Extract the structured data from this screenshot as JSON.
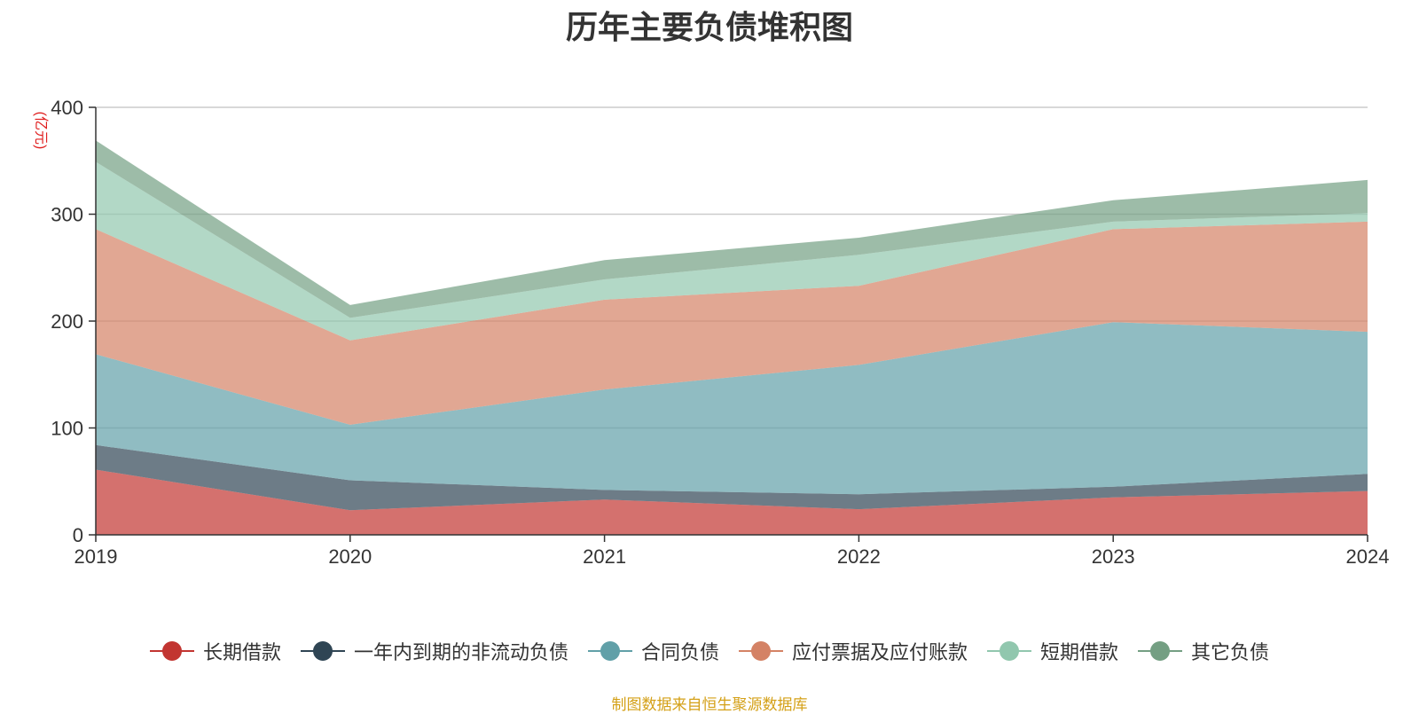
{
  "chart_data": {
    "type": "area",
    "stacked": true,
    "title": "历年主要负债堆积图",
    "unit_label": "(亿元)",
    "x": [
      "2019",
      "2020",
      "2021",
      "2022",
      "2023",
      "2024"
    ],
    "ylim": [
      0,
      400
    ],
    "yticks": [
      0,
      100,
      200,
      300,
      400
    ],
    "grid": true,
    "legend_position": "bottom",
    "series": [
      {
        "name": "长期借款",
        "color": "#c23531",
        "values": [
          61,
          23,
          33,
          24,
          35,
          41
        ]
      },
      {
        "name": "一年内到期的非流动负债",
        "color": "#2f4554",
        "values": [
          23,
          28,
          9,
          14,
          10,
          16
        ]
      },
      {
        "name": "合同负债",
        "color": "#61a0a8",
        "values": [
          85,
          52,
          94,
          121,
          154,
          133
        ]
      },
      {
        "name": "应付票据及应付账款",
        "color": "#d48265",
        "values": [
          117,
          79,
          84,
          74,
          87,
          103
        ]
      },
      {
        "name": "短期借款",
        "color": "#91c7ae",
        "values": [
          63,
          21,
          19,
          29,
          7,
          8
        ]
      },
      {
        "name": "其它负债",
        "color": "#749f83",
        "values": [
          20,
          12,
          18,
          16,
          20,
          31
        ]
      }
    ]
  },
  "source_note": "制图数据来自恒生聚源数据库"
}
